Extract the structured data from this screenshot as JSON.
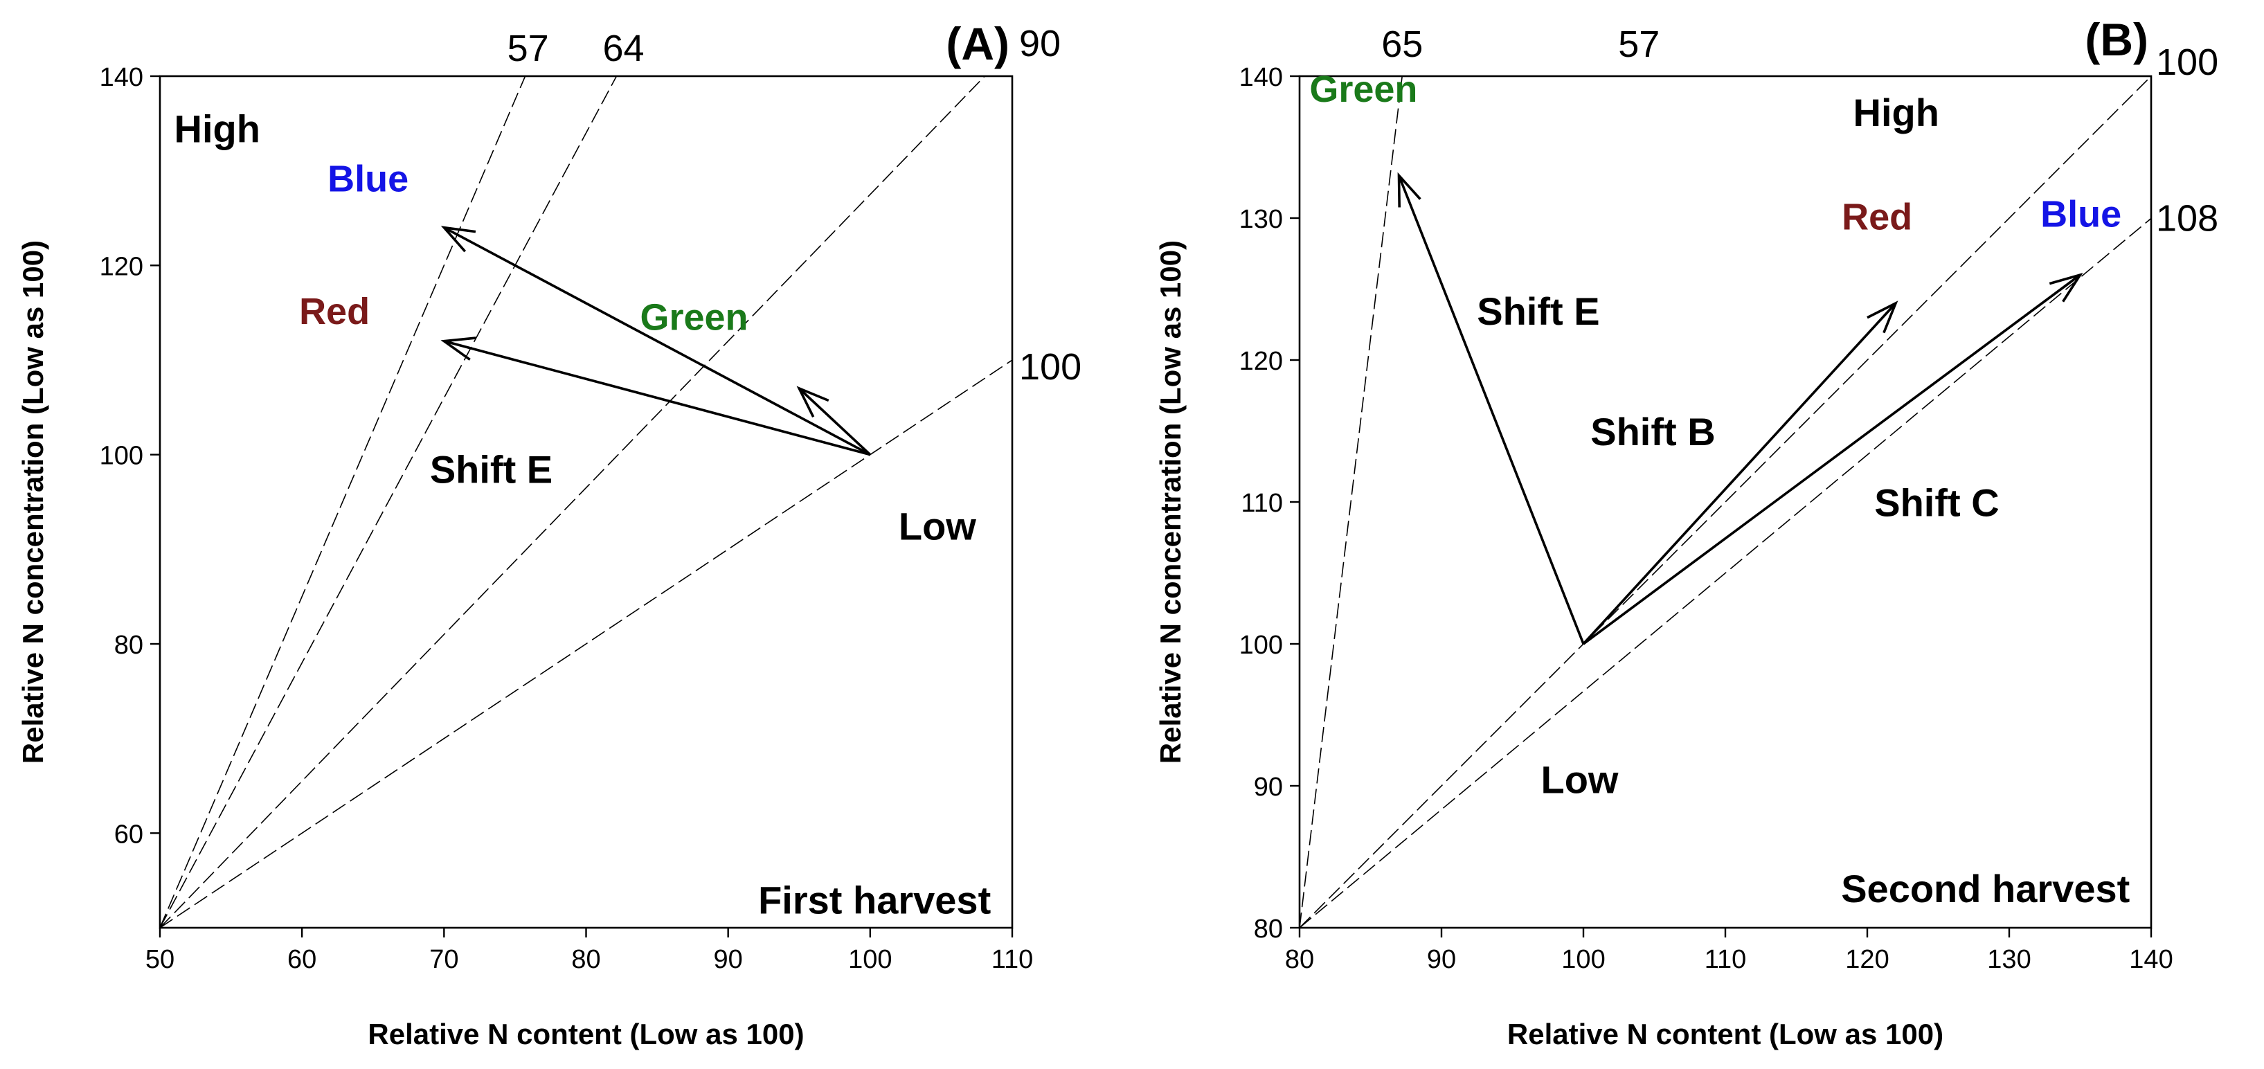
{
  "chart_data": [
    {
      "type": "line",
      "panel": "(A)",
      "title": "First harvest",
      "xlabel": "Relative N content (Low as 100)",
      "ylabel": "Relative N concentration (Low as 100)",
      "xlim": [
        50,
        110
      ],
      "ylim": [
        50,
        140
      ],
      "xticks": [
        50,
        60,
        70,
        80,
        90,
        100,
        110
      ],
      "yticks": [
        60,
        80,
        100,
        120,
        140
      ],
      "reference_lines": [
        {
          "label": "57",
          "slope": 3.5,
          "label_position": "top"
        },
        {
          "label": "64",
          "slope": 2.8,
          "label_position": "top"
        },
        {
          "label": "90",
          "slope": 1.55,
          "label_position": "right"
        },
        {
          "label": "100",
          "slope": 1.0,
          "label_position": "right"
        }
      ],
      "origin": {
        "x": 100,
        "y": 100
      },
      "vectors": [
        {
          "name": "Blue",
          "color": "#1414e6",
          "x": 70,
          "y": 124
        },
        {
          "name": "Red",
          "color": "#7a1a1a",
          "x": 70,
          "y": 112
        },
        {
          "name": "Green",
          "color": "#1a7a1a",
          "x": 95,
          "y": 107
        }
      ],
      "annotations": [
        {
          "text": "High",
          "x": 51,
          "y": 133
        },
        {
          "text": "Shift E",
          "x": 69,
          "y": 97
        },
        {
          "text": "Low",
          "x": 102,
          "y": 91
        },
        {
          "text": "First harvest",
          "x": 108.5,
          "y": 51.5
        }
      ]
    },
    {
      "type": "line",
      "panel": "(B)",
      "title": "Second harvest",
      "xlabel": "Relative N content (Low as 100)",
      "ylabel": "Relative N concentration (Low as 100)",
      "xlim": [
        80,
        140
      ],
      "ylim": [
        80,
        140
      ],
      "xticks": [
        80,
        90,
        100,
        110,
        120,
        130,
        140
      ],
      "yticks": [
        80,
        90,
        100,
        110,
        120,
        130,
        140
      ],
      "reference_lines": [
        {
          "label": "65",
          "slope": 8.3,
          "label_position": "top"
        },
        {
          "label": "57",
          "slope": null,
          "label_position": "top"
        },
        {
          "label": "100",
          "slope": 1.0,
          "label_position": "right"
        },
        {
          "label": "108",
          "slope": 0.833,
          "label_position": "right"
        }
      ],
      "origin": {
        "x": 100,
        "y": 100
      },
      "vectors": [
        {
          "name": "Green",
          "color": "#1a7a1a",
          "x": 87,
          "y": 133
        },
        {
          "name": "Red",
          "color": "#7a1a1a",
          "x": 122,
          "y": 124
        },
        {
          "name": "Blue",
          "color": "#1414e6",
          "x": 135,
          "y": 126
        }
      ],
      "annotations": [
        {
          "text": "High",
          "x": 119,
          "y": 136.5
        },
        {
          "text": "Shift E",
          "x": 92.5,
          "y": 122.5
        },
        {
          "text": "Shift B",
          "x": 100.5,
          "y": 114
        },
        {
          "text": "Shift C",
          "x": 120.5,
          "y": 109
        },
        {
          "text": "Low",
          "x": 97,
          "y": 89.5
        },
        {
          "text": "Second harvest",
          "x": 138.5,
          "y": 81.8
        }
      ]
    }
  ]
}
